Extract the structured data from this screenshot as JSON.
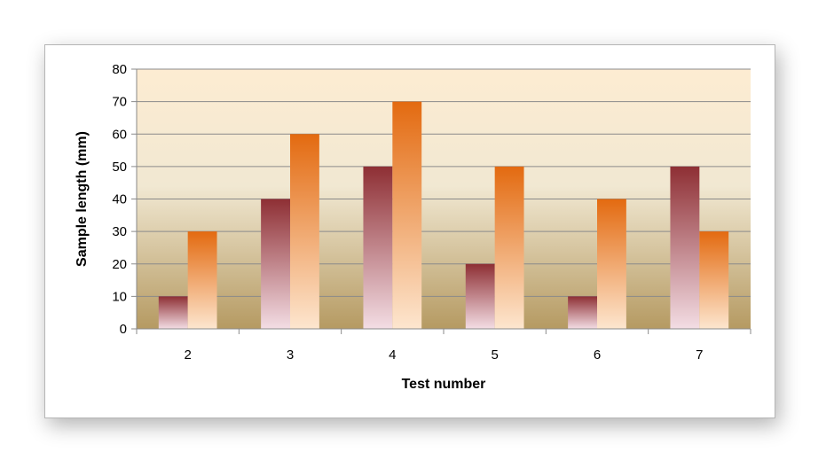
{
  "chart_data": {
    "type": "bar",
    "title": "",
    "xlabel": "Test number",
    "ylabel": "Sample length (mm)",
    "categories": [
      "2",
      "3",
      "4",
      "5",
      "6",
      "7"
    ],
    "series": [
      {
        "values": [
          10,
          40,
          50,
          20,
          10,
          50
        ],
        "color_top": "#8e2f34",
        "color_bottom": "#f3dde4"
      },
      {
        "values": [
          30,
          60,
          70,
          50,
          40,
          30
        ],
        "color_top": "#e36a10",
        "color_bottom": "#fde6cf"
      }
    ],
    "ylim": [
      0,
      80
    ],
    "yticks": [
      0,
      10,
      20,
      30,
      40,
      50,
      60,
      70,
      80
    ],
    "grid": true,
    "legend": "none",
    "background_top": "#fdecd2",
    "background_bottom": "#b59a62"
  }
}
